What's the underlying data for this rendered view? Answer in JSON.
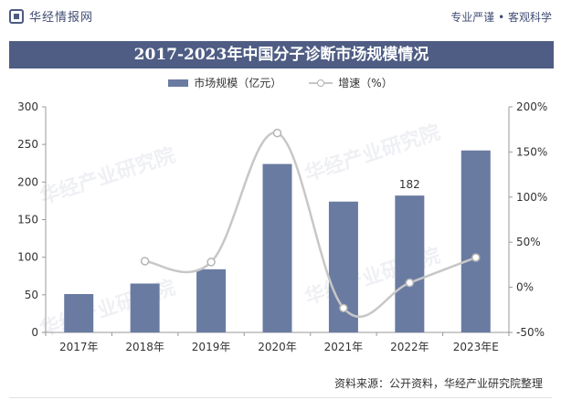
{
  "header": {
    "logo_text": "华经情报网",
    "tagline": "专业严谨 • 客观科学",
    "logo_icon": "huajing-logo-icon"
  },
  "title": "2017-2023年中国分子诊断市场规模情况",
  "legend": {
    "bar_label": "市场规模（亿元）",
    "line_label": "增速（%）"
  },
  "source": "资料来源：公开资料，华经产业研究院整理",
  "watermark_text": "华经产业研究院",
  "colors": {
    "bar": "#6a7ba2",
    "line": "#c7c7c7",
    "title_band": "#4f5d84"
  },
  "chart_data": {
    "type": "bar",
    "categories": [
      "2017年",
      "2018年",
      "2019年",
      "2020年",
      "2021年",
      "2022年",
      "2023年E"
    ],
    "series": [
      {
        "name": "市场规模（亿元）",
        "type": "bar",
        "axis": "left",
        "values": [
          51,
          65,
          84,
          224,
          174,
          182,
          242
        ]
      },
      {
        "name": "增速（%）",
        "type": "line",
        "axis": "right",
        "values": [
          null,
          29,
          28,
          171,
          -23,
          5,
          33
        ]
      }
    ],
    "data_labels": [
      {
        "category": "2022年",
        "text": "182"
      }
    ],
    "y_left": {
      "min": 0,
      "max": 300,
      "ticks": [
        0,
        50,
        100,
        150,
        200,
        250,
        300
      ]
    },
    "y_right": {
      "min": -50,
      "max": 200,
      "ticks": [
        "-50%",
        "0%",
        "50%",
        "100%",
        "150%",
        "200%"
      ]
    },
    "grid": false,
    "legend_position": "top-center"
  }
}
